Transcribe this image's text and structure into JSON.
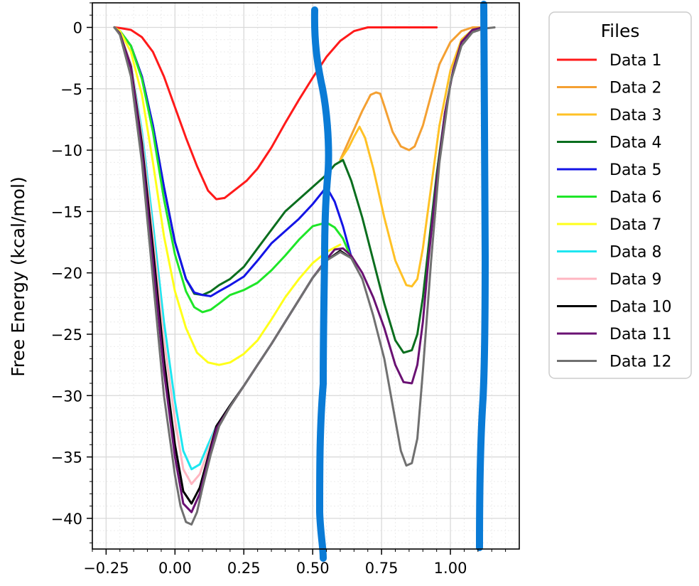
{
  "chart_data": {
    "type": "line",
    "title": "",
    "xlabel": "",
    "ylabel": "Free Energy (kcal/mol)",
    "xlim": [
      -0.3,
      1.25
    ],
    "ylim": [
      -42.5,
      2
    ],
    "xticks": [
      -0.25,
      0.0,
      0.25,
      0.5,
      0.75,
      1.0
    ],
    "xtick_labels": [
      "−0.25",
      "0.00",
      "0.25",
      "0.50",
      "0.75",
      "1.00"
    ],
    "yticks": [
      0,
      -5,
      -10,
      -15,
      -20,
      -25,
      -30,
      -35,
      -40
    ],
    "ytick_labels": [
      "0",
      "−5",
      "−10",
      "−15",
      "−20",
      "−25",
      "−30",
      "−35",
      "−40"
    ],
    "grid": true,
    "minor_grid": true,
    "legend": {
      "title": "Files",
      "position": "outside-right-top"
    },
    "series": [
      {
        "name": "Data 1",
        "color": "#ff1a1a",
        "x": [
          -0.22,
          -0.2,
          -0.16,
          -0.12,
          -0.08,
          -0.04,
          0.0,
          0.04,
          0.08,
          0.12,
          0.15,
          0.18,
          0.22,
          0.26,
          0.3,
          0.35,
          0.4,
          0.45,
          0.5,
          0.55,
          0.6,
          0.65,
          0.7,
          0.75,
          0.8,
          0.85,
          0.9,
          0.95
        ],
        "y": [
          0,
          -0.05,
          -0.2,
          -0.8,
          -2,
          -4,
          -6.5,
          -9,
          -11.3,
          -13.3,
          -14,
          -13.9,
          -13.2,
          -12.5,
          -11.5,
          -9.8,
          -7.8,
          -5.9,
          -4.1,
          -2.4,
          -1.1,
          -0.3,
          0,
          0,
          0,
          0,
          0,
          0
        ]
      },
      {
        "name": "Data 2",
        "color": "#f4a032",
        "x": [
          0.6,
          0.64,
          0.68,
          0.71,
          0.73,
          0.745,
          0.76,
          0.79,
          0.82,
          0.85,
          0.87,
          0.9,
          0.93,
          0.96,
          1.0,
          1.04,
          1.08,
          1.12
        ],
        "y": [
          -10.8,
          -8.8,
          -6.8,
          -5.5,
          -5.3,
          -5.4,
          -6.4,
          -8.5,
          -9.7,
          -10,
          -9.7,
          -8,
          -5.5,
          -3,
          -1.2,
          -0.3,
          0,
          0
        ]
      },
      {
        "name": "Data 3",
        "color": "#ffc125",
        "x": [
          0.6,
          0.63,
          0.65,
          0.67,
          0.69,
          0.72,
          0.76,
          0.8,
          0.84,
          0.86,
          0.88,
          0.9,
          0.93,
          0.96,
          1.0,
          1.04,
          1.08,
          1.12
        ],
        "y": [
          -10.8,
          -9.8,
          -8.9,
          -8.1,
          -9,
          -11.5,
          -15.5,
          -19,
          -21,
          -21.1,
          -20.5,
          -18,
          -13,
          -8,
          -3.5,
          -1,
          -0.2,
          0
        ]
      },
      {
        "name": "Data 4",
        "color": "#0a6e1e",
        "x": [
          -0.22,
          -0.2,
          -0.16,
          -0.12,
          -0.08,
          -0.04,
          0.0,
          0.04,
          0.07,
          0.1,
          0.13,
          0.16,
          0.2,
          0.25,
          0.3,
          0.35,
          0.4,
          0.45,
          0.5,
          0.55,
          0.58,
          0.61,
          0.64,
          0.68,
          0.72,
          0.76,
          0.8,
          0.83,
          0.86,
          0.88,
          0.9,
          0.92,
          0.95,
          0.98,
          1.01,
          1.04,
          1.08,
          1.12
        ],
        "y": [
          0,
          -0.3,
          -1.5,
          -4,
          -8,
          -13,
          -17.5,
          -20.5,
          -21.7,
          -21.8,
          -21.5,
          -21,
          -20.5,
          -19.5,
          -18,
          -16.5,
          -15,
          -14,
          -13,
          -12,
          -11.2,
          -10.8,
          -12.5,
          -15.5,
          -19,
          -22.5,
          -25.5,
          -26.5,
          -26.3,
          -25,
          -22,
          -18,
          -12,
          -7,
          -3.5,
          -1.2,
          -0.2,
          0
        ]
      },
      {
        "name": "Data 5",
        "color": "#1414e6",
        "x": [
          -0.22,
          -0.2,
          -0.16,
          -0.12,
          -0.08,
          -0.04,
          0.0,
          0.04,
          0.07,
          0.1,
          0.13,
          0.16,
          0.2,
          0.25,
          0.3,
          0.35,
          0.4,
          0.45,
          0.5,
          0.55,
          0.58,
          0.61,
          0.64
        ],
        "y": [
          0,
          -0.3,
          -1.5,
          -4,
          -8,
          -13,
          -17.5,
          -20.5,
          -21.6,
          -21.8,
          -21.9,
          -21.5,
          -21,
          -20.3,
          -19,
          -17.6,
          -16.6,
          -15.6,
          -14.4,
          -13,
          -14.2,
          -16.2,
          -18.7
        ]
      },
      {
        "name": "Data 6",
        "color": "#1ee628",
        "x": [
          -0.22,
          -0.2,
          -0.16,
          -0.12,
          -0.08,
          -0.04,
          0.0,
          0.04,
          0.07,
          0.1,
          0.13,
          0.16,
          0.2,
          0.25,
          0.3,
          0.35,
          0.4,
          0.45,
          0.5,
          0.55,
          0.58,
          0.61,
          0.64
        ],
        "y": [
          0,
          -0.3,
          -1.5,
          -4.2,
          -8.5,
          -14,
          -18.5,
          -21.5,
          -22.8,
          -23.2,
          -23,
          -22.5,
          -21.8,
          -21.4,
          -20.8,
          -19.8,
          -18.6,
          -17.3,
          -16.2,
          -15.9,
          -16.3,
          -17.2,
          -18.8
        ]
      },
      {
        "name": "Data 7",
        "color": "#ffff1a",
        "x": [
          -0.22,
          -0.2,
          -0.16,
          -0.12,
          -0.08,
          -0.04,
          0.0,
          0.04,
          0.08,
          0.12,
          0.16,
          0.2,
          0.25,
          0.3,
          0.35,
          0.4,
          0.45,
          0.5,
          0.55,
          0.6
        ],
        "y": [
          0,
          -0.3,
          -2,
          -5.5,
          -11,
          -17,
          -21.5,
          -24.5,
          -26.5,
          -27.3,
          -27.5,
          -27.3,
          -26.6,
          -25.5,
          -23.8,
          -22,
          -20.5,
          -19.2,
          -18.3,
          -17.7
        ]
      },
      {
        "name": "Data 8",
        "color": "#1ee6f0",
        "x": [
          -0.22,
          -0.2,
          -0.16,
          -0.12,
          -0.08,
          -0.04,
          0.0,
          0.03,
          0.06,
          0.09,
          0.12,
          0.15,
          0.2,
          0.25,
          0.3,
          0.35,
          0.4,
          0.45,
          0.5,
          0.55,
          0.6
        ],
        "y": [
          0,
          -0.5,
          -3,
          -8.5,
          -16,
          -24,
          -30.5,
          -34.5,
          -36,
          -35.6,
          -34,
          -32.5,
          -30.8,
          -29.2,
          -27.5,
          -25.8,
          -24,
          -22.2,
          -20.4,
          -19,
          -18.2
        ]
      },
      {
        "name": "Data 9",
        "color": "#ffb6c1",
        "x": [
          -0.22,
          -0.2,
          -0.16,
          -0.12,
          -0.08,
          -0.04,
          0.0,
          0.03,
          0.06,
          0.09,
          0.12,
          0.15,
          0.2,
          0.25,
          0.3,
          0.35,
          0.4,
          0.45,
          0.5,
          0.55,
          0.6
        ],
        "y": [
          0,
          -0.5,
          -3,
          -9,
          -17,
          -25.5,
          -32,
          -36,
          -37.2,
          -36.4,
          -34.5,
          -32.5,
          -30.8,
          -29.2,
          -27.5,
          -25.8,
          -24,
          -22.2,
          -20.4,
          -19,
          -18.2
        ]
      },
      {
        "name": "Data 10",
        "color": "#000000",
        "x": [
          -0.22,
          -0.2,
          -0.16,
          -0.12,
          -0.08,
          -0.04,
          0.0,
          0.03,
          0.06,
          0.09,
          0.12,
          0.15,
          0.2,
          0.25,
          0.3,
          0.35,
          0.4,
          0.45,
          0.5,
          0.55,
          0.6,
          0.64
        ],
        "y": [
          0,
          -0.5,
          -3.2,
          -9.5,
          -18,
          -27,
          -34,
          -37.8,
          -38.8,
          -37.5,
          -35,
          -32.5,
          -30.8,
          -29.2,
          -27.5,
          -25.8,
          -24,
          -22.2,
          -20.4,
          -19,
          -18.2,
          -18.8
        ]
      },
      {
        "name": "Data 11",
        "color": "#6a1173",
        "x": [
          -0.22,
          -0.2,
          -0.16,
          -0.12,
          -0.08,
          -0.04,
          0.0,
          0.03,
          0.06,
          0.09,
          0.12,
          0.15,
          0.2,
          0.25,
          0.3,
          0.35,
          0.4,
          0.45,
          0.5,
          0.55,
          0.58,
          0.61,
          0.64,
          0.68,
          0.72,
          0.76,
          0.8,
          0.83,
          0.86,
          0.88,
          0.9,
          0.92,
          0.95,
          0.98,
          1.01,
          1.04,
          1.08,
          1.12
        ],
        "y": [
          0,
          -0.5,
          -3.3,
          -10,
          -19,
          -28,
          -35,
          -38.8,
          -39.5,
          -38,
          -35.3,
          -32.7,
          -30.9,
          -29.2,
          -27.5,
          -25.8,
          -24,
          -22.2,
          -20.4,
          -18.9,
          -18.1,
          -18,
          -18.6,
          -20,
          -22,
          -24.5,
          -27.5,
          -28.9,
          -29,
          -27.5,
          -24,
          -19,
          -12.5,
          -7,
          -3.5,
          -1.2,
          -0.2,
          0
        ]
      },
      {
        "name": "Data 12",
        "color": "#707070",
        "x": [
          -0.22,
          -0.2,
          -0.16,
          -0.12,
          -0.08,
          -0.04,
          0.0,
          0.02,
          0.04,
          0.06,
          0.08,
          0.1,
          0.13,
          0.16,
          0.2,
          0.25,
          0.3,
          0.35,
          0.4,
          0.45,
          0.5,
          0.55,
          0.6,
          0.64,
          0.68,
          0.72,
          0.76,
          0.8,
          0.82,
          0.84,
          0.86,
          0.88,
          0.9,
          0.93,
          0.96,
          1.0,
          1.04,
          1.08,
          1.12,
          1.16
        ],
        "y": [
          0,
          -0.6,
          -4,
          -11,
          -20.5,
          -30,
          -36.5,
          -39,
          -40.3,
          -40.5,
          -39.5,
          -37.5,
          -34.8,
          -32.5,
          -30.9,
          -29.2,
          -27.5,
          -25.8,
          -24,
          -22.2,
          -20.4,
          -19,
          -18.3,
          -18.8,
          -20.5,
          -23.5,
          -27,
          -32,
          -34.5,
          -35.7,
          -35.5,
          -33.5,
          -28,
          -19,
          -11,
          -4.5,
          -1.5,
          -0.4,
          -0.1,
          0
        ]
      }
    ]
  }
}
